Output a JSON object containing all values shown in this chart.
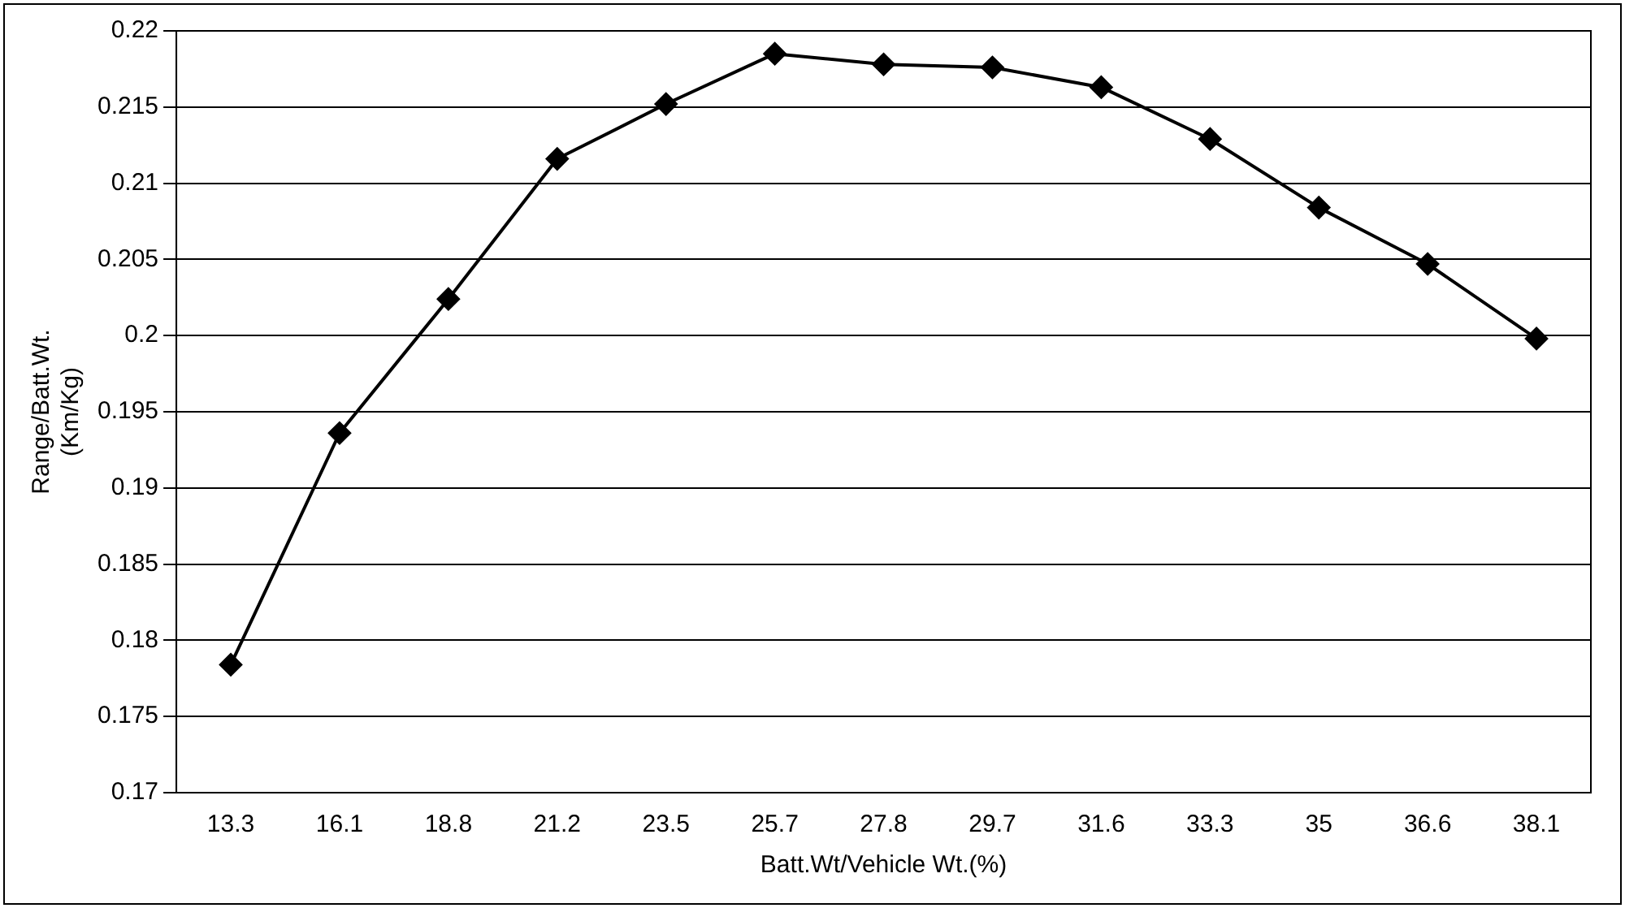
{
  "chart_data": {
    "type": "line",
    "xlabel": "Batt.Wt/Vehicle Wt.(%)",
    "ylabel": "Range/Batt.Wt.\n(Km/Kg)",
    "categories": [
      "13.3",
      "16.1",
      "18.8",
      "21.2",
      "23.5",
      "25.7",
      "27.8",
      "29.7",
      "31.6",
      "33.3",
      "35",
      "36.6",
      "38.1"
    ],
    "series": [
      {
        "color": "#000000",
        "values": [
          0.1784,
          0.1936,
          0.2024,
          0.2116,
          0.2152,
          0.2185,
          0.2178,
          0.2176,
          0.2163,
          0.2129,
          0.2084,
          0.2047,
          0.1998
        ]
      }
    ],
    "ylim": [
      0.17,
      0.22
    ],
    "yticks": [
      0.17,
      0.175,
      0.18,
      0.185,
      0.19,
      0.195,
      0.2,
      0.205,
      0.21,
      0.215,
      0.22
    ],
    "grid": "y",
    "legend": false,
    "marker": "diamond",
    "line_style": "solid"
  }
}
